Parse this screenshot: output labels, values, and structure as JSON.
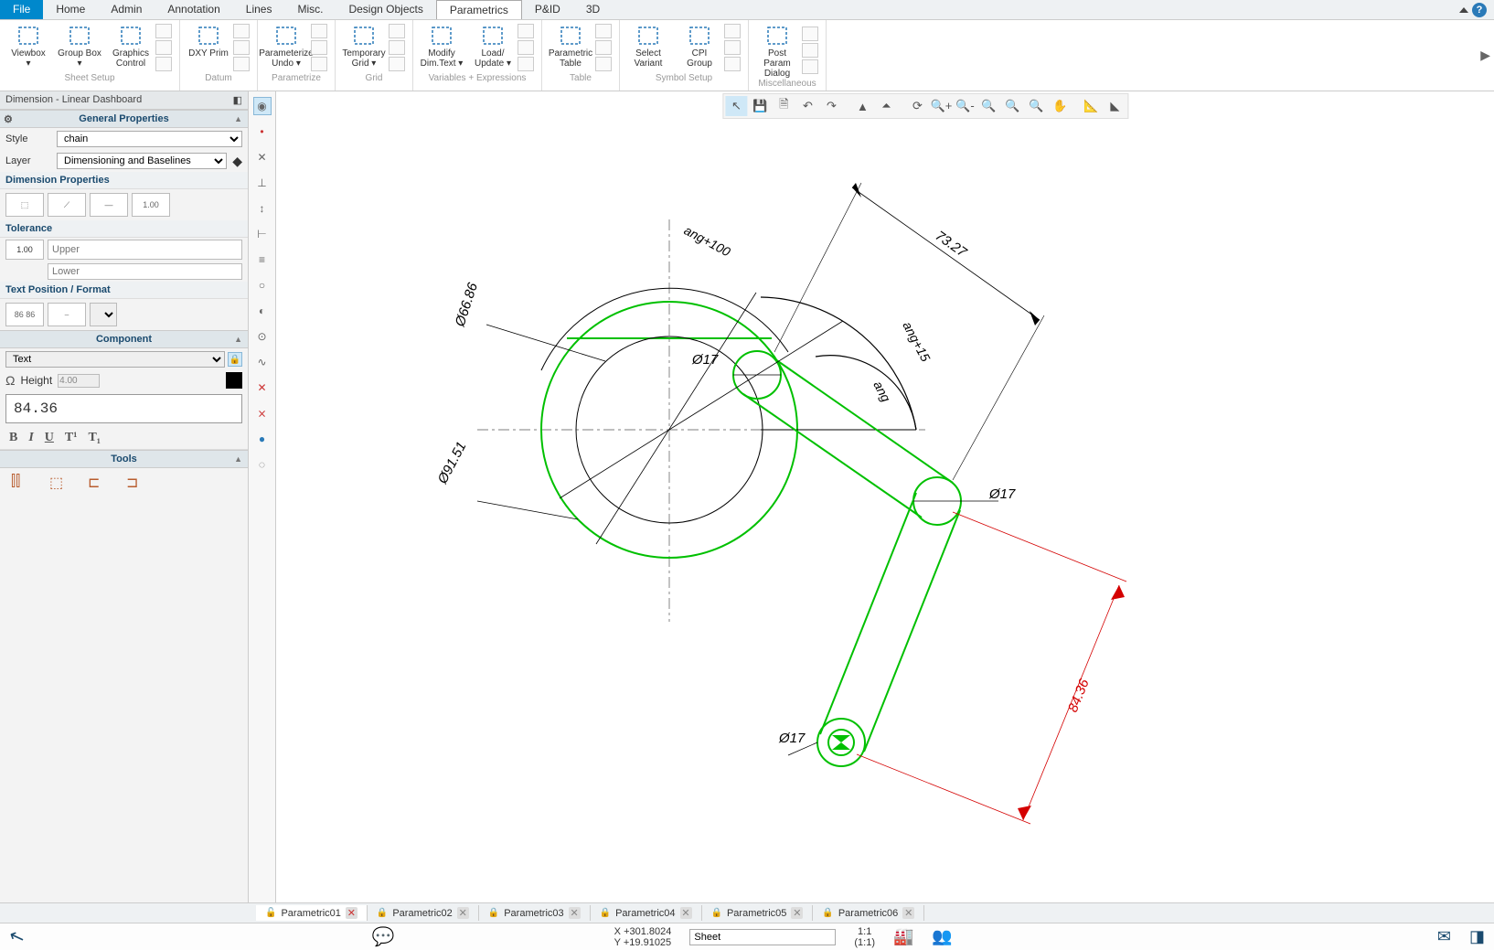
{
  "menu": {
    "items": [
      "File",
      "Home",
      "Admin",
      "Annotation",
      "Lines",
      "Misc.",
      "Design Objects",
      "Parametrics",
      "P&ID",
      "3D"
    ],
    "active_index": 0,
    "selected_index": 7
  },
  "ribbon": {
    "groups": [
      {
        "label": "Sheet Setup",
        "buttons": [
          {
            "label": "Viewbox\n▾"
          },
          {
            "label": "Group Box\n▾"
          },
          {
            "label": "Graphics\nControl"
          }
        ]
      },
      {
        "label": "Datum",
        "buttons": [
          {
            "label": "DXY Prim"
          }
        ]
      },
      {
        "label": "Parametrize",
        "buttons": [
          {
            "label": "Parameterize\nUndo ▾"
          }
        ]
      },
      {
        "label": "Grid",
        "buttons": [
          {
            "label": "Temporary\nGrid ▾"
          }
        ]
      },
      {
        "label": "Variables + Expressions",
        "buttons": [
          {
            "label": "Modify\nDim.Text ▾"
          },
          {
            "label": "Load/\nUpdate ▾"
          }
        ]
      },
      {
        "label": "Table",
        "buttons": [
          {
            "label": "Parametric\nTable"
          }
        ]
      },
      {
        "label": "Symbol Setup",
        "buttons": [
          {
            "label": "Select\nVariant"
          },
          {
            "label": "CPI\nGroup"
          }
        ]
      },
      {
        "label": "Miscellaneous",
        "buttons": [
          {
            "label": "Post Param\nDialog"
          }
        ]
      }
    ]
  },
  "sidebar": {
    "title": "Dimension - Linear Dashboard",
    "sections": {
      "general": {
        "header": "General Properties",
        "style_label": "Style",
        "style_value": "chain",
        "layer_label": "Layer",
        "layer_value": "Dimensioning and Baselines"
      },
      "dimprops": {
        "header": "Dimension Properties",
        "val": "1.00"
      },
      "tolerance": {
        "header": "Tolerance",
        "val": "1.00",
        "upper_ph": "Upper",
        "lower_ph": "Lower"
      },
      "textpos": {
        "header": "Text Position / Format",
        "val": "86 86"
      },
      "component": {
        "header": "Component",
        "type": "Text",
        "height_label": "Height",
        "height_value": "4.00",
        "text_value": "84.36"
      },
      "tools": {
        "header": "Tools"
      }
    }
  },
  "doctabs": [
    {
      "name": "Parametric01",
      "active": true
    },
    {
      "name": "Parametric02",
      "active": false
    },
    {
      "name": "Parametric03",
      "active": false
    },
    {
      "name": "Parametric04",
      "active": false
    },
    {
      "name": "Parametric05",
      "active": false
    },
    {
      "name": "Parametric06",
      "active": false
    }
  ],
  "status": {
    "x": "X +301.8024",
    "y": "Y +19.91025",
    "sheet": "Sheet",
    "ratio1": "1:1",
    "ratio2": "(1:1)"
  },
  "drawing": {
    "colors": {
      "geom": "#00c000",
      "dim": "#000000",
      "sel": "#d40000",
      "center": "#555"
    },
    "dims": {
      "d1": "Ø66.86",
      "d2": "Ø91.51",
      "d3": "Ø17",
      "d4": "Ø17",
      "d5": "Ø17",
      "len1": "73.27",
      "len2": "84.36",
      "ang1": "ang+100",
      "ang2": "ang+15",
      "ang3": "ang"
    }
  }
}
